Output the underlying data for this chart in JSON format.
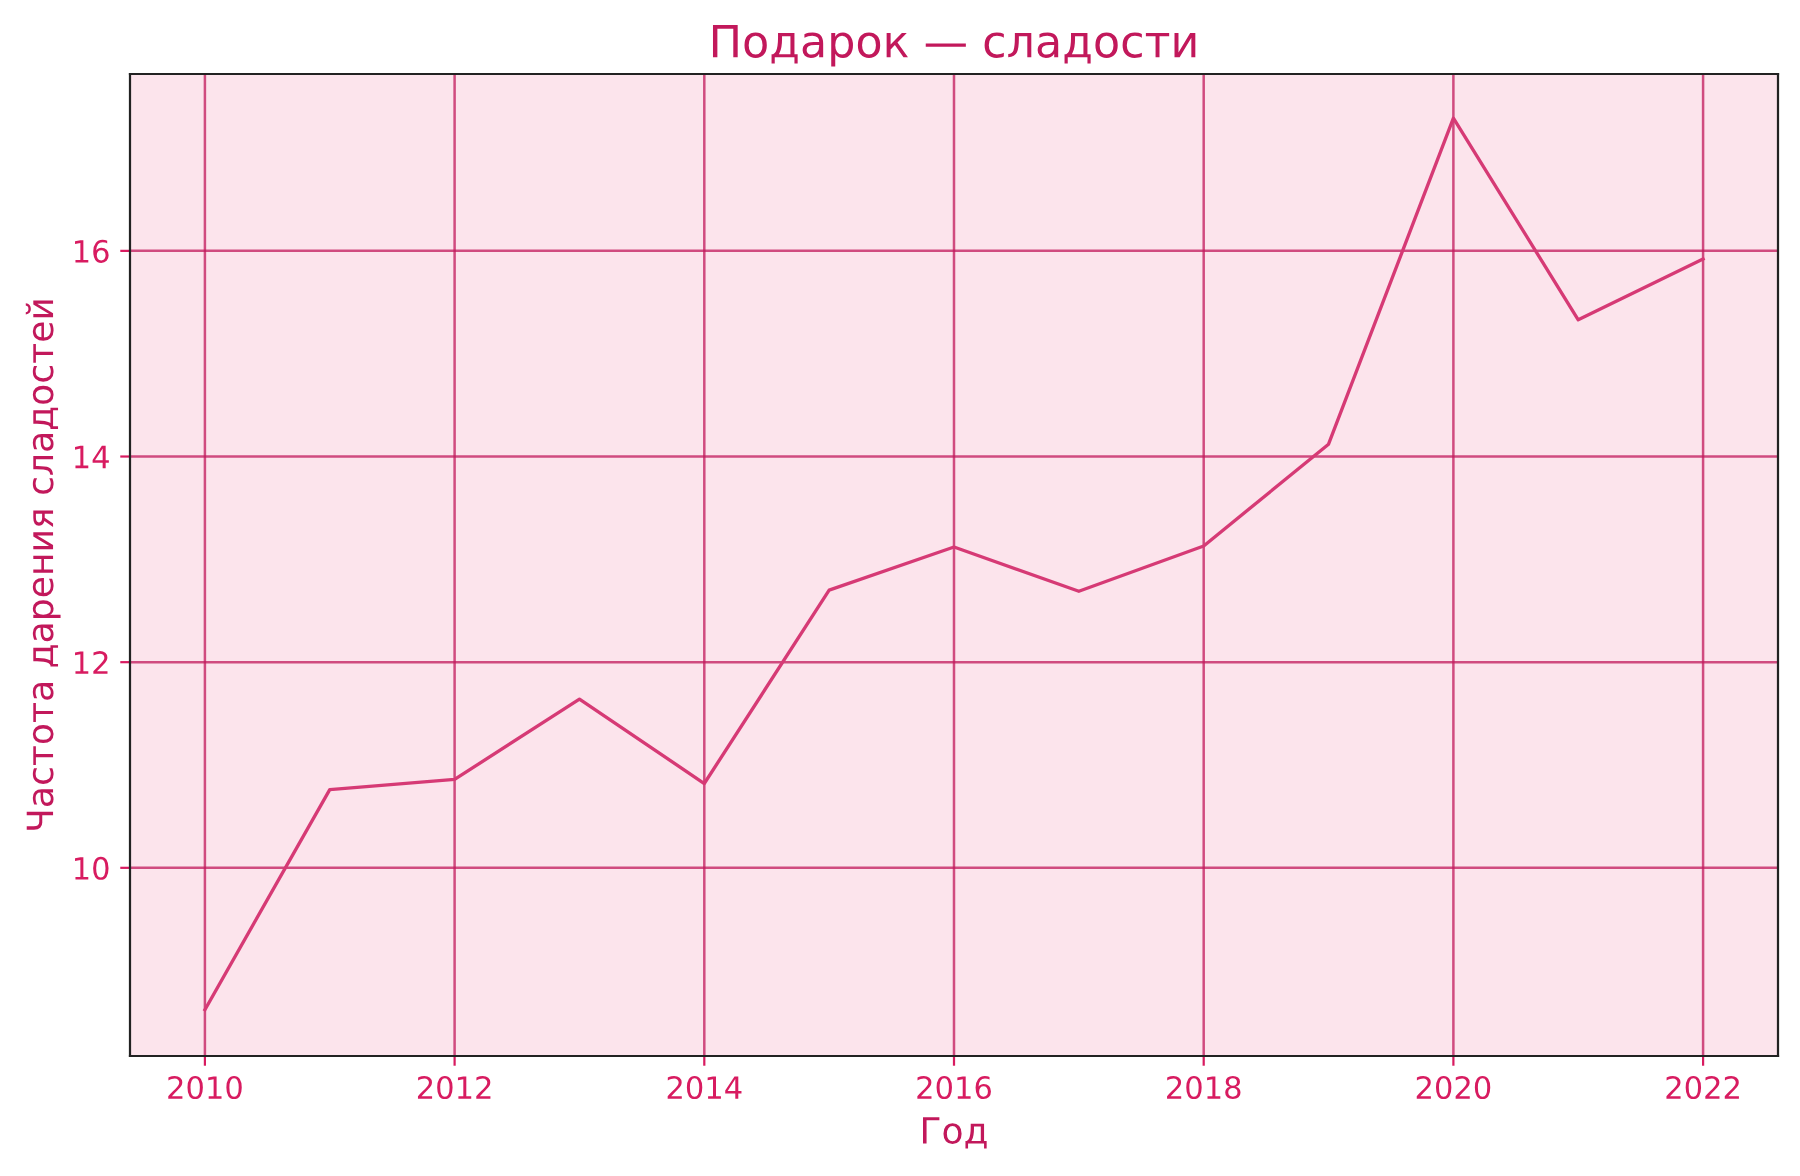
{
  "chart_data": {
    "type": "line",
    "title": "Подарок — сладости",
    "xlabel": "Год",
    "ylabel": "Частота дарения сладостей",
    "x": [
      2010,
      2011,
      2012,
      2013,
      2014,
      2015,
      2016,
      2017,
      2018,
      2019,
      2020,
      2021,
      2022
    ],
    "series": [
      {
        "color": "#d63a75",
        "values": [
          8.62,
          10.76,
          10.86,
          11.64,
          10.82,
          12.7,
          13.12,
          12.69,
          13.13,
          14.12,
          17.29,
          15.33,
          15.92
        ]
      }
    ],
    "xlim": [
      2009.4,
      2022.6
    ],
    "xticks": [
      2010,
      2012,
      2014,
      2016,
      2018,
      2020,
      2022
    ],
    "ylim": [
      8.17,
      17.72
    ],
    "yticks": [
      10,
      12,
      14,
      16
    ],
    "grid": true,
    "marker": "none",
    "line_style": "solid"
  }
}
